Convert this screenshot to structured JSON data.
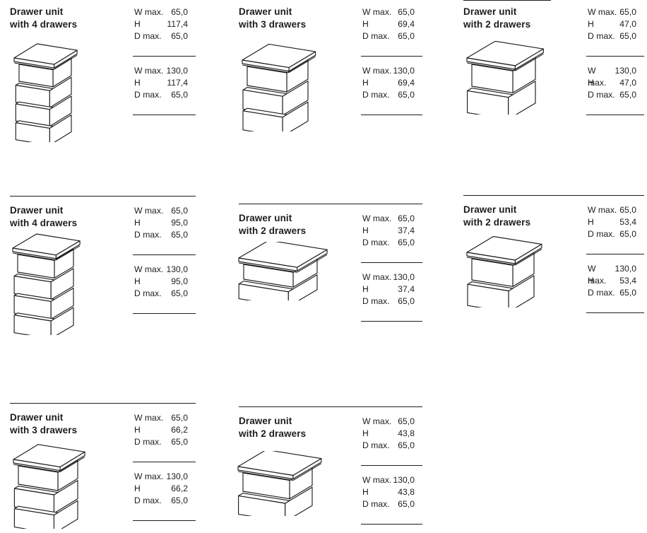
{
  "page": {
    "background_color": "#ffffff",
    "ink_color": "#1d1d1b",
    "description": "Drawer unit specification sheet"
  },
  "spec_labels": {
    "w": "W max.",
    "h": "H",
    "d": "D max."
  },
  "units": [
    {
      "title_line1": "Drawer unit",
      "title_line2": "with 4 drawers",
      "drawers": 4,
      "narrow": {
        "w": "65,0",
        "h": "117,4",
        "d": "65,0"
      },
      "wide": {
        "w": "130,0",
        "h": "117,4",
        "d": "65,0"
      }
    },
    {
      "title_line1": "Drawer unit",
      "title_line2": "with 3 drawers",
      "drawers": 3,
      "narrow": {
        "w": "65,0",
        "h": "69,4",
        "d": "65,0"
      },
      "wide": {
        "w": "130,0",
        "h": "69,4",
        "d": "65,0"
      }
    },
    {
      "title_line1": "Drawer unit",
      "title_line2": "with 2 drawers",
      "drawers": 2,
      "narrow": {
        "w": "65,0",
        "h": "47,0",
        "d": "65,0"
      },
      "wide": {
        "w": "130,0",
        "h": "47,0",
        "d": "65,0"
      }
    },
    {
      "title_line1": "Drawer unit",
      "title_line2": "with 4 drawers",
      "drawers": 4,
      "narrow": {
        "w": "65,0",
        "h": "95,0",
        "d": "65,0"
      },
      "wide": {
        "w": "130,0",
        "h": "95,0",
        "d": "65,0"
      }
    },
    {
      "title_line1": "Drawer unit",
      "title_line2": "with 2 drawers",
      "drawers": 2,
      "narrow": {
        "w": "65,0",
        "h": "37,4",
        "d": "65,0"
      },
      "wide": {
        "w": "130,0",
        "h": "37,4",
        "d": "65,0"
      }
    },
    {
      "title_line1": "Drawer unit",
      "title_line2": "with 2 drawers",
      "drawers": 2,
      "narrow": {
        "w": "65,0",
        "h": "53,4",
        "d": "65,0"
      },
      "wide": {
        "w": "130,0",
        "h": "53,4",
        "d": "65,0"
      }
    },
    {
      "title_line1": "Drawer unit",
      "title_line2": "with 3 drawers",
      "drawers": 3,
      "narrow": {
        "w": "65,0",
        "h": "66,2",
        "d": "65,0"
      },
      "wide": {
        "w": "130,0",
        "h": "66,2",
        "d": "65,0"
      }
    },
    {
      "title_line1": "Drawer unit",
      "title_line2": "with 2 drawers",
      "drawers": 2,
      "narrow": {
        "w": "65,0",
        "h": "43,8",
        "d": "65,0"
      },
      "wide": {
        "w": "130,0",
        "h": "43,8",
        "d": "65,0"
      }
    }
  ]
}
